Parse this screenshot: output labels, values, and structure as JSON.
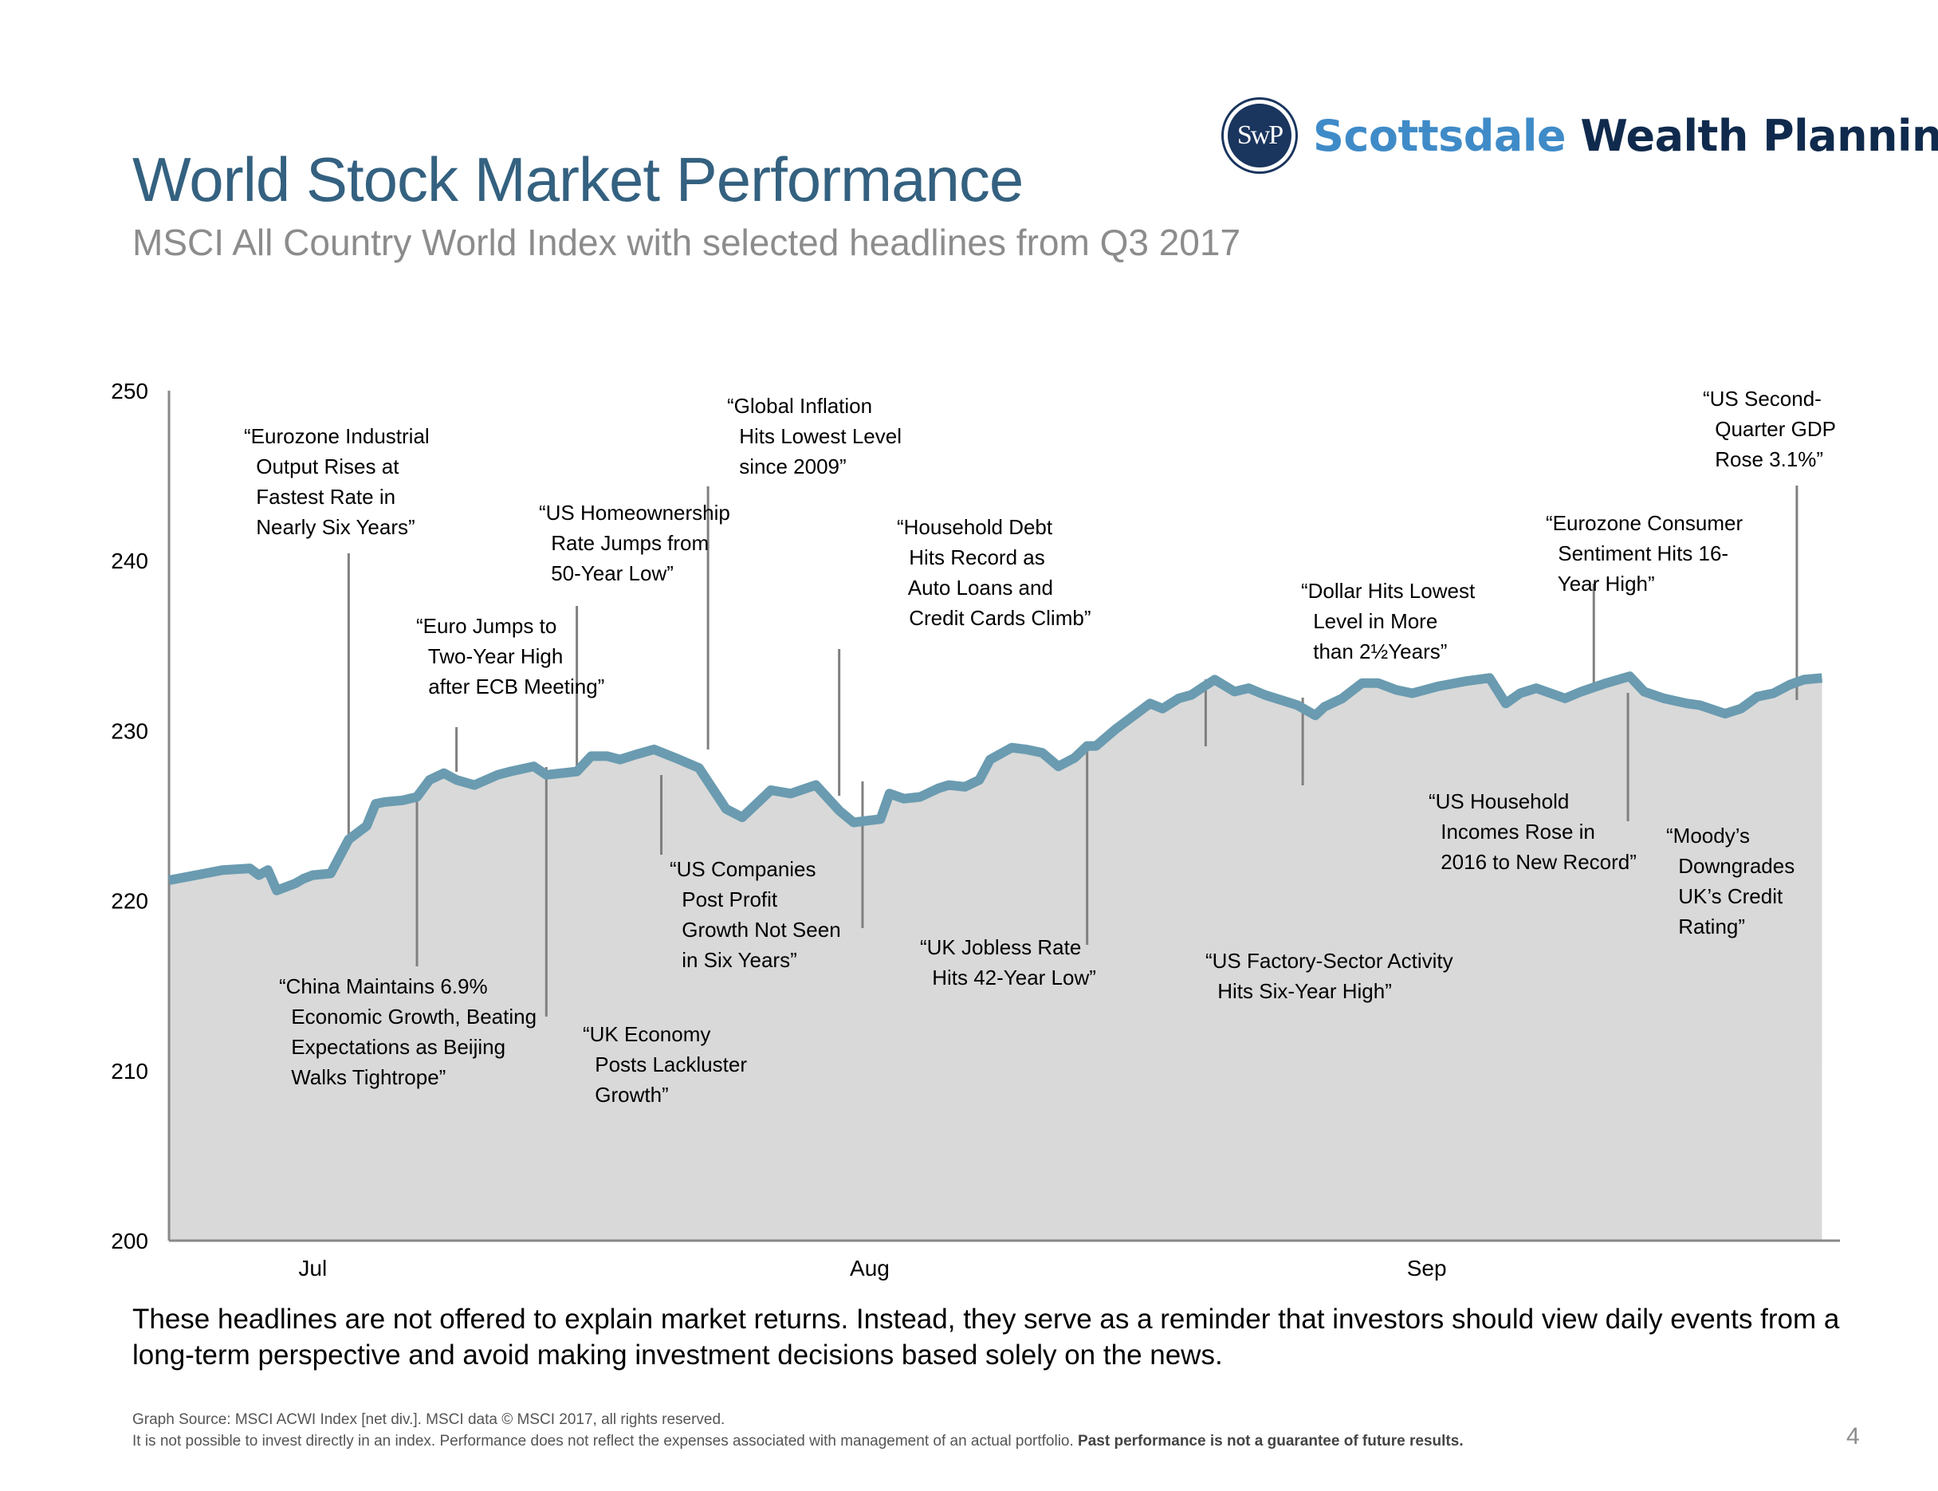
{
  "logo": {
    "seal_text": "SwP",
    "name_part1": "Scottsdale",
    "name_part2": "Wealth Planning",
    "colors": {
      "seal": "#1a355e",
      "part1": "#3f8bc8",
      "part2": "#102a4d"
    }
  },
  "header": {
    "title": "World Stock Market Performance",
    "subtitle": "MSCI All Country World Index with selected headlines from Q3 2017"
  },
  "chart_data": {
    "type": "area",
    "title": "MSCI All Country World Index",
    "xlabel": "",
    "ylabel": "",
    "ylim": [
      200,
      250
    ],
    "yticks": [
      200,
      210,
      220,
      230,
      240,
      250
    ],
    "x_tick_labels": [
      {
        "label": "Jul",
        "day": 8
      },
      {
        "label": "Aug",
        "day": 39
      },
      {
        "label": "Sep",
        "day": 70
      }
    ],
    "xlim": [
      0,
      93
    ],
    "grid": false,
    "colors": {
      "line": "#6a9bb0",
      "fill": "#d9d9d9",
      "axis": "#888888",
      "leader": "#808080"
    },
    "series": [
      {
        "name": "MSCI ACWI Index (net div.)",
        "x": [
          0,
          3,
          4.5,
          5,
          5.5,
          6,
          7,
          7.5,
          8,
          9,
          10,
          11,
          11.5,
          12,
          13,
          13.8,
          14.5,
          15.3,
          16,
          17,
          18.3,
          19,
          20.3,
          21,
          22.7,
          23.5,
          24.4,
          25.1,
          26,
          27,
          28.4,
          29.5,
          31,
          31.9,
          32.7,
          33.5,
          34.6,
          36,
          37.3,
          38.1,
          38.8,
          39.6,
          40.1,
          40.9,
          41.8,
          42.8,
          43.4,
          44.3,
          45.1,
          45.7,
          46.9,
          47.7,
          48.6,
          49.5,
          50.4,
          51.1,
          51.6,
          52.7,
          54.6,
          55.3,
          56.2,
          56.9,
          57.6,
          58.2,
          59.3,
          60.1,
          61,
          62.8,
          63.8,
          64.3,
          65.3,
          66.4,
          67.3,
          68.3,
          69.2,
          70.6,
          72.1,
          73.5,
          74.4,
          75.2,
          76.1,
          77.7,
          78.6,
          80,
          81.3,
          82.1,
          83.2,
          84.5,
          85.2,
          86.6,
          87.5,
          88.4,
          89.3,
          90.2,
          91,
          92
        ],
        "y": [
          221.2,
          221.8,
          221.9,
          221.5,
          221.8,
          220.6,
          221.0,
          221.3,
          221.5,
          221.6,
          223.6,
          224.4,
          225.7,
          225.8,
          225.9,
          226.1,
          227.1,
          227.5,
          227.1,
          226.8,
          227.4,
          227.6,
          227.9,
          227.4,
          227.6,
          228.5,
          228.5,
          228.3,
          228.6,
          228.9,
          228.3,
          227.8,
          225.4,
          224.9,
          225.7,
          226.5,
          226.3,
          226.8,
          225.3,
          224.6,
          224.7,
          224.8,
          226.3,
          226.0,
          226.1,
          226.6,
          226.8,
          226.7,
          227.1,
          228.3,
          229.0,
          228.9,
          228.7,
          227.9,
          228.4,
          229.1,
          229.1,
          230.1,
          231.6,
          231.3,
          231.9,
          232.1,
          232.6,
          233.0,
          232.3,
          232.5,
          232.1,
          231.5,
          230.9,
          231.4,
          231.9,
          232.8,
          232.8,
          232.4,
          232.2,
          232.6,
          232.9,
          233.1,
          231.6,
          232.2,
          232.5,
          231.9,
          232.3,
          232.8,
          233.2,
          232.3,
          231.9,
          231.6,
          231.5,
          231.0,
          231.3,
          232.0,
          232.2,
          232.7,
          233.0,
          233.1
        ]
      }
    ],
    "annotations": [
      {
        "lines": [
          "“Eurozone Industrial",
          " Output Rises at",
          " Fastest Rate in",
          " Nearly Six Years”"
        ],
        "day": 10,
        "value": 223.6,
        "position": "above"
      },
      {
        "lines": [
          "“China Maintains 6.9%",
          " Economic Growth, Beating",
          " Expectations as Beijing",
          " Walks Tightrope”"
        ],
        "day": 13.8,
        "value": 226.0,
        "position": "below"
      },
      {
        "lines": [
          "“Euro Jumps to",
          " Two-Year High",
          " after ECB Meeting”"
        ],
        "day": 16,
        "value": 227.3,
        "position": "above"
      },
      {
        "lines": [
          "“UK Economy",
          " Posts Lackluster",
          " Growth”"
        ],
        "day": 21,
        "value": 227.4,
        "position": "below"
      },
      {
        "lines": [
          "“US Homeownership",
          " Rate Jumps from",
          " 50-Year Low”"
        ],
        "day": 22.7,
        "value": 227.8,
        "position": "above"
      },
      {
        "lines": [
          "“US Companies",
          " Post Profit",
          " Growth Not Seen",
          " in Six Years”"
        ],
        "day": 27.4,
        "value": 227.6,
        "position": "below"
      },
      {
        "lines": [
          "“Global Inflation",
          " Hits Lowest Level",
          " since 2009”"
        ],
        "day": 30.0,
        "value": 228.3,
        "position": "above"
      },
      {
        "lines": [
          "“Household Debt",
          " Hits Record as",
          " Auto Loans and",
          " Credit Cards Climb”"
        ],
        "day": 37.3,
        "value": 226.3,
        "position": "above"
      },
      {
        "lines": [
          "“UK Jobless Rate",
          " Hits 42-Year Low”"
        ],
        "day": 38.6,
        "value": 226.5,
        "position": "below"
      },
      {
        "lines": [
          "“US Factory-Sector Activity",
          " Hits Six-Year High”"
        ],
        "day": 51.1,
        "value": 228.9,
        "position": "below"
      },
      {
        "lines": [
          "“Dollar Hits Lowest",
          " Level in More",
          " than 2½Years”"
        ],
        "day": 57.7,
        "value": 229.2,
        "position": "above"
      },
      {
        "lines": [
          "“US Household",
          " Incomes Rose in",
          " 2016 to New Record”"
        ],
        "day": 63.1,
        "value": 231.5,
        "position": "below"
      },
      {
        "lines": [
          "“Eurozone Consumer",
          " Sentiment Hits 16-",
          " Year High”"
        ],
        "day": 79.3,
        "value": 232.5,
        "position": "above"
      },
      {
        "lines": [
          "“Moody’s",
          " Downgrades",
          " UK’s Credit",
          " Rating”"
        ],
        "day": 81.2,
        "value": 232.7,
        "position": "below"
      },
      {
        "lines": [
          "“US Second-",
          " Quarter GDP",
          " Rose 3.1%”"
        ],
        "day": 90.6,
        "value": 232.2,
        "position": "above"
      }
    ]
  },
  "footer": {
    "note": "These headlines are not offered to explain market returns. Instead, they serve as a reminder that investors should view daily events from a long-term perspective and avoid making investment decisions based solely on the news.",
    "source_line": "Graph Source: MSCI ACWI Index [net div.]. MSCI data © MSCI 2017, all rights reserved.",
    "disclaimer": "It is not possible to invest directly in an index. Performance does not reflect the expenses associated with management of an actual portfolio.",
    "disclaimer_bold": "Past performance is not a guarantee of future results.",
    "page_number": "4"
  }
}
